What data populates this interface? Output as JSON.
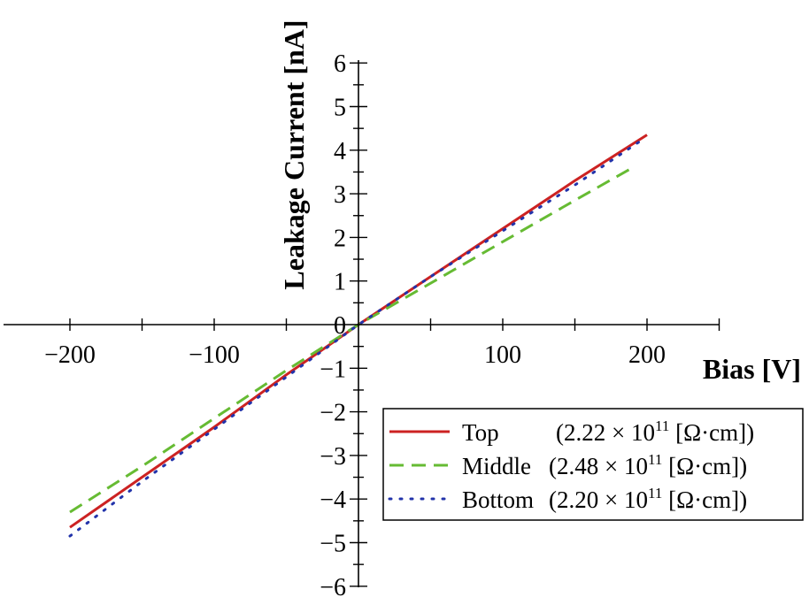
{
  "chart_data": {
    "type": "line",
    "xlabel": "Bias [V]",
    "ylabel": "Leakage Current [nA]",
    "xlim": [
      -250,
      250
    ],
    "ylim": [
      -6,
      6
    ],
    "x_ticks": [
      -200,
      -100,
      0,
      100,
      200
    ],
    "x_tick_labels": [
      "−200",
      "−100",
      "",
      "100",
      "200"
    ],
    "y_ticks": [
      -6,
      -5,
      -4,
      -3,
      -2,
      -1,
      0,
      1,
      2,
      3,
      4,
      5,
      6
    ],
    "y_tick_labels": [
      "−6",
      "−5",
      "−4",
      "−3",
      "−2",
      "−1",
      "0",
      "1",
      "2",
      "3",
      "4",
      "5",
      "6"
    ],
    "legend_position": "bottom-right",
    "series": [
      {
        "name": "Top",
        "resistivity": "(2.22 × 10",
        "exponent": "11",
        "unit": " [Ω·cm])",
        "color": "#cc2222",
        "style": "solid",
        "x": [
          -200,
          -150,
          -100,
          -50,
          0,
          50,
          100,
          150,
          200
        ],
        "y": [
          -4.65,
          -3.5,
          -2.35,
          -1.15,
          0,
          1.1,
          2.2,
          3.3,
          4.35
        ]
      },
      {
        "name": "Middle",
        "resistivity": "(2.48 × 10",
        "exponent": "11",
        "unit": " [Ω·cm])",
        "color": "#66bb33",
        "style": "dashed",
        "x": [
          -200,
          -150,
          -100,
          -50,
          0,
          50,
          100,
          150,
          190
        ],
        "y": [
          -4.3,
          -3.25,
          -2.15,
          -1.05,
          0,
          0.95,
          1.9,
          2.85,
          3.6
        ]
      },
      {
        "name": "Bottom",
        "resistivity": "(2.20 × 10",
        "exponent": "11",
        "unit": " [Ω·cm])",
        "color": "#2233aa",
        "style": "dotted",
        "x": [
          -200,
          -150,
          -100,
          -50,
          0,
          50,
          100,
          150,
          195
        ],
        "y": [
          -4.85,
          -3.6,
          -2.4,
          -1.2,
          0,
          1.1,
          2.15,
          3.2,
          4.2
        ]
      }
    ]
  }
}
